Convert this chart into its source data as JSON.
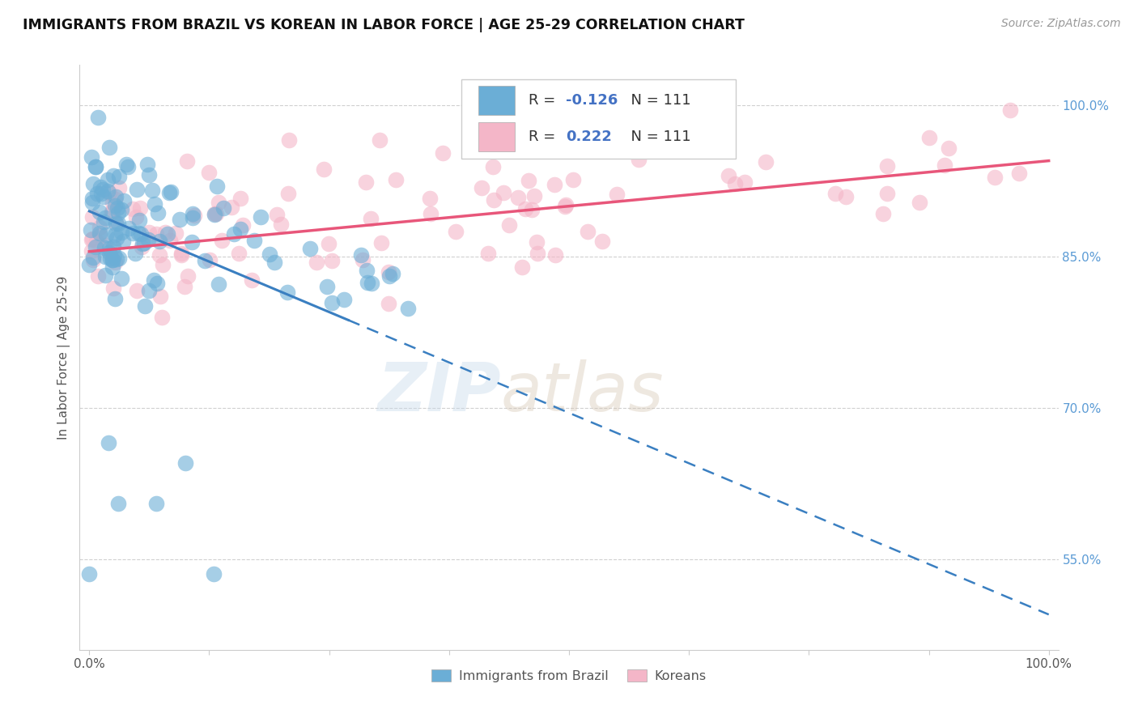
{
  "title": "IMMIGRANTS FROM BRAZIL VS KOREAN IN LABOR FORCE | AGE 25-29 CORRELATION CHART",
  "source_text": "Source: ZipAtlas.com",
  "ylabel": "In Labor Force | Age 25-29",
  "brazil_R": -0.126,
  "brazil_N": 111,
  "korean_R": 0.222,
  "korean_N": 111,
  "brazil_color": "#6baed6",
  "korean_color": "#f4b6c8",
  "brazil_trend_color": "#3a7fc1",
  "korean_trend_color": "#e8567a",
  "xlim": [
    -0.01,
    1.01
  ],
  "ylim": [
    0.46,
    1.04
  ],
  "yticks": [
    0.55,
    0.7,
    0.85,
    1.0
  ],
  "ytick_labels": [
    "55.0%",
    "70.0%",
    "85.0%",
    "100.0%"
  ],
  "xtick_labels": [
    "0.0%",
    "100.0%"
  ]
}
